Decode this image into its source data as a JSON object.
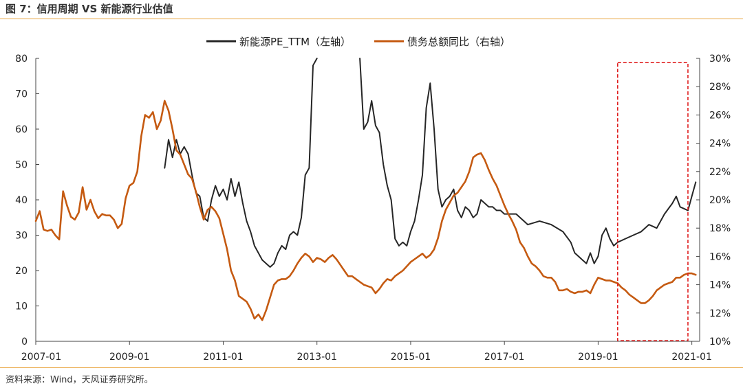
{
  "figure_title": "图 7：信用周期 VS 新能源行业估值",
  "source_note": "资料来源：Wind，天风证券研究所。",
  "colors": {
    "pe_line": "#262626",
    "debt_line": "#c55a11",
    "highlight_box": "#e02020",
    "accent_rule": "#e8a33a"
  },
  "chart_data": {
    "type": "line",
    "title": "",
    "xlabel": "",
    "ylabel": "",
    "x_axis": {
      "type": "date",
      "range": [
        "2007-01",
        "2021-03"
      ],
      "tick_labels": [
        "2007-01",
        "2009-01",
        "2011-01",
        "2013-01",
        "2015-01",
        "2017-01",
        "2019-01",
        "2021-01"
      ]
    },
    "y_left": {
      "range": [
        0,
        80
      ],
      "tick_labels": [
        "0",
        "10",
        "20",
        "30",
        "40",
        "50",
        "60",
        "70",
        "80"
      ]
    },
    "y_right": {
      "range": [
        10,
        30
      ],
      "tick_labels": [
        "10%",
        "12%",
        "14%",
        "16%",
        "18%",
        "20%",
        "22%",
        "24%",
        "26%",
        "28%",
        "30%"
      ]
    },
    "legend": {
      "position": "top-center",
      "entries": [
        "新能源PE_TTM（左轴）",
        "债务总额同比（右轴）"
      ]
    },
    "grid": false,
    "highlight": {
      "x_range": [
        "2019-06",
        "2021-00"
      ],
      "y_right_range": [
        10,
        29.7
      ],
      "style": "dashed"
    },
    "series": [
      {
        "name": "新能源PE_TTM（左轴）",
        "axis": "left",
        "points": [
          [
            "2009-10",
            49
          ],
          [
            "2009-11",
            57
          ],
          [
            "2009-12",
            52
          ],
          [
            "2010-01",
            57
          ],
          [
            "2010-02",
            53
          ],
          [
            "2010-03",
            55
          ],
          [
            "2010-04",
            53
          ],
          [
            "2010-05",
            47
          ],
          [
            "2010-06",
            42
          ],
          [
            "2010-07",
            41
          ],
          [
            "2010-08",
            35
          ],
          [
            "2010-09",
            34
          ],
          [
            "2010-10",
            40
          ],
          [
            "2010-11",
            44
          ],
          [
            "2010-12",
            41
          ],
          [
            "2011-01",
            43
          ],
          [
            "2011-02",
            40
          ],
          [
            "2011-03",
            46
          ],
          [
            "2011-04",
            41
          ],
          [
            "2011-05",
            45
          ],
          [
            "2011-06",
            39
          ],
          [
            "2011-07",
            34
          ],
          [
            "2011-08",
            31
          ],
          [
            "2011-09",
            27
          ],
          [
            "2011-10",
            25
          ],
          [
            "2011-11",
            23
          ],
          [
            "2011-12",
            22
          ],
          [
            "2012-01",
            21
          ],
          [
            "2012-02",
            22
          ],
          [
            "2012-03",
            25
          ],
          [
            "2012-04",
            27
          ],
          [
            "2012-05",
            26
          ],
          [
            "2012-06",
            30
          ],
          [
            "2012-07",
            31
          ],
          [
            "2012-08",
            30
          ],
          [
            "2012-09",
            35
          ],
          [
            "2012-10",
            47
          ],
          [
            "2012-11",
            49
          ],
          [
            "2012-12",
            78
          ],
          [
            "2013-01",
            80
          ]
        ]
      },
      {
        "name": "新能源PE_TTM（左轴）",
        "axis": "left",
        "points": [
          [
            "2013-12",
            80
          ],
          [
            "2014-01",
            60
          ],
          [
            "2014-02",
            62
          ],
          [
            "2014-03",
            68
          ],
          [
            "2014-04",
            61
          ],
          [
            "2014-05",
            59
          ],
          [
            "2014-06",
            50
          ],
          [
            "2014-07",
            44
          ],
          [
            "2014-08",
            40
          ],
          [
            "2014-09",
            29
          ],
          [
            "2014-10",
            27
          ],
          [
            "2014-11",
            28
          ],
          [
            "2014-12",
            27
          ],
          [
            "2015-01",
            31
          ],
          [
            "2015-02",
            34
          ],
          [
            "2015-03",
            40
          ],
          [
            "2015-04",
            47
          ],
          [
            "2015-05",
            66
          ],
          [
            "2015-06",
            73
          ],
          [
            "2015-07",
            60
          ],
          [
            "2015-08",
            43
          ],
          [
            "2015-09",
            38
          ],
          [
            "2015-10",
            40
          ],
          [
            "2015-11",
            41
          ],
          [
            "2015-12",
            43
          ],
          [
            "2016-01",
            37
          ],
          [
            "2016-02",
            35
          ],
          [
            "2016-03",
            38
          ],
          [
            "2016-04",
            37
          ],
          [
            "2016-05",
            35
          ],
          [
            "2016-06",
            36
          ],
          [
            "2016-07",
            40
          ],
          [
            "2016-08",
            39
          ],
          [
            "2016-09",
            38
          ],
          [
            "2016-10",
            38
          ],
          [
            "2016-11",
            37
          ],
          [
            "2016-12",
            37
          ],
          [
            "2017-01",
            36
          ],
          [
            "2017-04",
            36
          ],
          [
            "2017-07",
            33
          ],
          [
            "2017-10",
            34
          ],
          [
            "2018-01",
            33
          ],
          [
            "2018-04",
            31
          ],
          [
            "2018-06",
            28
          ],
          [
            "2018-07",
            25
          ],
          [
            "2018-09",
            23
          ],
          [
            "2018-10",
            22
          ],
          [
            "2018-11",
            25
          ],
          [
            "2018-12",
            22
          ],
          [
            "2019-01",
            24
          ],
          [
            "2019-02",
            30
          ],
          [
            "2019-03",
            32
          ],
          [
            "2019-04",
            29
          ],
          [
            "2019-05",
            27
          ],
          [
            "2019-06",
            28
          ],
          [
            "2019-08",
            29
          ],
          [
            "2019-10",
            30
          ],
          [
            "2019-12",
            31
          ],
          [
            "2020-02",
            33
          ],
          [
            "2020-04",
            32
          ],
          [
            "2020-06",
            36
          ],
          [
            "2020-08",
            39
          ],
          [
            "2020-09",
            41
          ],
          [
            "2020-10",
            38
          ],
          [
            "2020-12",
            37
          ],
          [
            "2021-01",
            41
          ],
          [
            "2021-02",
            45
          ]
        ]
      },
      {
        "name": "债务总额同比（右轴）",
        "axis": "right",
        "points": [
          [
            "2007-01",
            18.5
          ],
          [
            "2007-02",
            19.2
          ],
          [
            "2007-03",
            17.9
          ],
          [
            "2007-04",
            17.8
          ],
          [
            "2007-05",
            17.9
          ],
          [
            "2007-06",
            17.5
          ],
          [
            "2007-07",
            17.2
          ],
          [
            "2007-08",
            20.6
          ],
          [
            "2007-09",
            19.6
          ],
          [
            "2007-10",
            18.8
          ],
          [
            "2007-11",
            18.6
          ],
          [
            "2007-12",
            19.1
          ],
          [
            "2008-01",
            20.9
          ],
          [
            "2008-02",
            19.3
          ],
          [
            "2008-03",
            20.0
          ],
          [
            "2008-04",
            19.2
          ],
          [
            "2008-05",
            18.7
          ],
          [
            "2008-06",
            19.0
          ],
          [
            "2008-07",
            18.9
          ],
          [
            "2008-08",
            18.9
          ],
          [
            "2008-09",
            18.6
          ],
          [
            "2008-10",
            18.0
          ],
          [
            "2008-11",
            18.3
          ],
          [
            "2008-12",
            20.1
          ],
          [
            "2009-01",
            21.0
          ],
          [
            "2009-02",
            21.2
          ],
          [
            "2009-03",
            22.0
          ],
          [
            "2009-04",
            24.5
          ],
          [
            "2009-05",
            26.0
          ],
          [
            "2009-06",
            25.8
          ],
          [
            "2009-07",
            26.2
          ],
          [
            "2009-08",
            25.0
          ],
          [
            "2009-09",
            25.6
          ],
          [
            "2009-10",
            27.0
          ],
          [
            "2009-11",
            26.3
          ],
          [
            "2009-12",
            25.0
          ],
          [
            "2010-01",
            23.5
          ],
          [
            "2010-02",
            23.2
          ],
          [
            "2010-03",
            22.5
          ],
          [
            "2010-04",
            21.8
          ],
          [
            "2010-05",
            21.5
          ],
          [
            "2010-06",
            20.6
          ],
          [
            "2010-07",
            19.5
          ],
          [
            "2010-08",
            18.6
          ],
          [
            "2010-09",
            19.3
          ],
          [
            "2010-10",
            19.5
          ],
          [
            "2010-11",
            19.2
          ],
          [
            "2010-12",
            18.7
          ],
          [
            "2011-01",
            17.6
          ],
          [
            "2011-02",
            16.5
          ],
          [
            "2011-03",
            15.0
          ],
          [
            "2011-04",
            14.3
          ],
          [
            "2011-05",
            13.2
          ],
          [
            "2011-06",
            13.0
          ],
          [
            "2011-07",
            12.8
          ],
          [
            "2011-08",
            12.3
          ],
          [
            "2011-09",
            11.6
          ],
          [
            "2011-10",
            11.9
          ],
          [
            "2011-11",
            11.5
          ],
          [
            "2011-12",
            12.2
          ],
          [
            "2012-01",
            13.1
          ],
          [
            "2012-02",
            14.0
          ],
          [
            "2012-03",
            14.3
          ],
          [
            "2012-04",
            14.4
          ],
          [
            "2012-05",
            14.4
          ],
          [
            "2012-06",
            14.6
          ],
          [
            "2012-07",
            15.0
          ],
          [
            "2012-08",
            15.5
          ],
          [
            "2012-09",
            15.9
          ],
          [
            "2012-10",
            16.2
          ],
          [
            "2012-11",
            16.0
          ],
          [
            "2012-12",
            15.6
          ],
          [
            "2013-01",
            15.9
          ],
          [
            "2013-02",
            15.8
          ],
          [
            "2013-03",
            15.6
          ],
          [
            "2013-04",
            15.9
          ],
          [
            "2013-05",
            16.1
          ],
          [
            "2013-06",
            15.8
          ],
          [
            "2013-07",
            15.4
          ],
          [
            "2013-08",
            15.0
          ],
          [
            "2013-09",
            14.6
          ],
          [
            "2013-10",
            14.6
          ],
          [
            "2013-11",
            14.4
          ],
          [
            "2013-12",
            14.2
          ],
          [
            "2014-01",
            14.0
          ],
          [
            "2014-02",
            13.9
          ],
          [
            "2014-03",
            13.8
          ],
          [
            "2014-04",
            13.4
          ],
          [
            "2014-05",
            13.7
          ],
          [
            "2014-06",
            14.1
          ],
          [
            "2014-07",
            14.4
          ],
          [
            "2014-08",
            14.3
          ],
          [
            "2014-09",
            14.6
          ],
          [
            "2014-10",
            14.8
          ],
          [
            "2014-11",
            15.0
          ],
          [
            "2014-12",
            15.3
          ],
          [
            "2015-01",
            15.6
          ],
          [
            "2015-02",
            15.8
          ],
          [
            "2015-03",
            16.0
          ],
          [
            "2015-04",
            16.2
          ],
          [
            "2015-05",
            15.9
          ],
          [
            "2015-06",
            16.1
          ],
          [
            "2015-07",
            16.5
          ],
          [
            "2015-08",
            17.3
          ],
          [
            "2015-09",
            18.5
          ],
          [
            "2015-10",
            19.3
          ],
          [
            "2015-11",
            19.8
          ],
          [
            "2015-12",
            20.3
          ],
          [
            "2016-01",
            20.5
          ],
          [
            "2016-02",
            20.9
          ],
          [
            "2016-03",
            21.3
          ],
          [
            "2016-04",
            22.0
          ],
          [
            "2016-05",
            23.0
          ],
          [
            "2016-06",
            23.2
          ],
          [
            "2016-07",
            23.3
          ],
          [
            "2016-08",
            22.8
          ],
          [
            "2016-09",
            22.1
          ],
          [
            "2016-10",
            21.5
          ],
          [
            "2016-11",
            21.0
          ],
          [
            "2016-12",
            20.3
          ],
          [
            "2017-01",
            19.6
          ],
          [
            "2017-02",
            19.0
          ],
          [
            "2017-03",
            18.5
          ],
          [
            "2017-04",
            17.9
          ],
          [
            "2017-05",
            17.0
          ],
          [
            "2017-06",
            16.6
          ],
          [
            "2017-07",
            16.0
          ],
          [
            "2017-08",
            15.5
          ],
          [
            "2017-09",
            15.3
          ],
          [
            "2017-10",
            15.0
          ],
          [
            "2017-11",
            14.6
          ],
          [
            "2017-12",
            14.5
          ],
          [
            "2018-01",
            14.5
          ],
          [
            "2018-02",
            14.2
          ],
          [
            "2018-03",
            13.6
          ],
          [
            "2018-04",
            13.6
          ],
          [
            "2018-05",
            13.7
          ],
          [
            "2018-06",
            13.5
          ],
          [
            "2018-07",
            13.4
          ],
          [
            "2018-08",
            13.5
          ],
          [
            "2018-09",
            13.5
          ],
          [
            "2018-10",
            13.6
          ],
          [
            "2018-11",
            13.4
          ],
          [
            "2018-12",
            14.0
          ],
          [
            "2019-01",
            14.5
          ],
          [
            "2019-02",
            14.4
          ],
          [
            "2019-03",
            14.3
          ],
          [
            "2019-04",
            14.3
          ],
          [
            "2019-05",
            14.2
          ],
          [
            "2019-06",
            14.1
          ],
          [
            "2019-07",
            13.8
          ],
          [
            "2019-08",
            13.6
          ],
          [
            "2019-09",
            13.3
          ],
          [
            "2019-10",
            13.1
          ],
          [
            "2019-11",
            12.9
          ],
          [
            "2019-12",
            12.7
          ],
          [
            "2020-01",
            12.7
          ],
          [
            "2020-02",
            12.9
          ],
          [
            "2020-03",
            13.2
          ],
          [
            "2020-04",
            13.6
          ],
          [
            "2020-05",
            13.8
          ],
          [
            "2020-06",
            14.0
          ],
          [
            "2020-07",
            14.1
          ],
          [
            "2020-08",
            14.2
          ],
          [
            "2020-09",
            14.5
          ],
          [
            "2020-10",
            14.5
          ],
          [
            "2020-11",
            14.7
          ],
          [
            "2020-12",
            14.8
          ],
          [
            "2021-01",
            14.8
          ],
          [
            "2021-02",
            14.7
          ]
        ]
      }
    ]
  }
}
